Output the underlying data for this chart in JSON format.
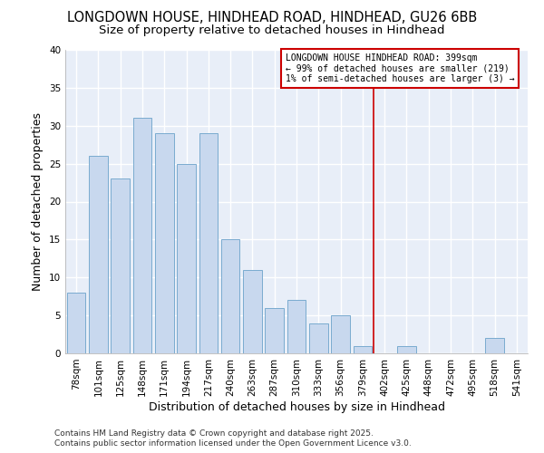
{
  "title": "LONGDOWN HOUSE, HINDHEAD ROAD, HINDHEAD, GU26 6BB",
  "subtitle": "Size of property relative to detached houses in Hindhead",
  "xlabel": "Distribution of detached houses by size in Hindhead",
  "ylabel": "Number of detached properties",
  "footnote1": "Contains HM Land Registry data © Crown copyright and database right 2025.",
  "footnote2": "Contains public sector information licensed under the Open Government Licence v3.0.",
  "bar_labels": [
    "78sqm",
    "101sqm",
    "125sqm",
    "148sqm",
    "171sqm",
    "194sqm",
    "217sqm",
    "240sqm",
    "263sqm",
    "287sqm",
    "310sqm",
    "333sqm",
    "356sqm",
    "379sqm",
    "402sqm",
    "425sqm",
    "448sqm",
    "472sqm",
    "495sqm",
    "518sqm",
    "541sqm"
  ],
  "bar_values": [
    8,
    26,
    23,
    31,
    29,
    25,
    29,
    15,
    11,
    6,
    7,
    4,
    5,
    1,
    0,
    1,
    0,
    0,
    0,
    2,
    0
  ],
  "bar_color": "#c8d8ee",
  "bar_edge_color": "#7aabcf",
  "vline_color": "#cc0000",
  "annotation_title": "LONGDOWN HOUSE HINDHEAD ROAD: 399sqm",
  "annotation_line1": "← 99% of detached houses are smaller (219)",
  "annotation_line2": "1% of semi-detached houses are larger (3) →",
  "annotation_box_color": "#cc0000",
  "ylim": [
    0,
    40
  ],
  "yticks": [
    0,
    5,
    10,
    15,
    20,
    25,
    30,
    35,
    40
  ],
  "bg_color": "#ffffff",
  "plot_bg_color": "#e8eef8",
  "grid_color": "#ffffff",
  "title_fontsize": 10.5,
  "subtitle_fontsize": 9.5,
  "axis_label_fontsize": 9,
  "tick_fontsize": 7.5,
  "footnote_fontsize": 6.5
}
